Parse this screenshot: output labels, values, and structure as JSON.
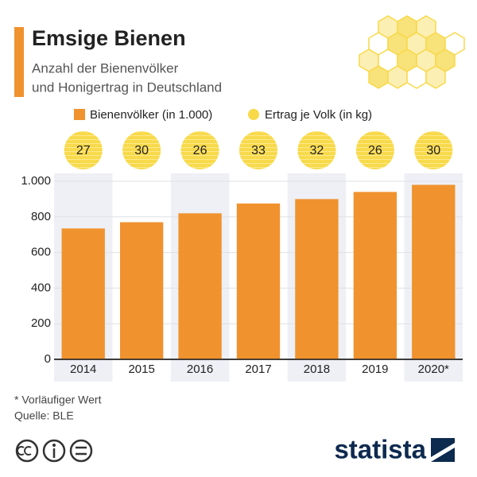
{
  "chart_data": {
    "type": "bar",
    "title": "Emsige Bienen",
    "subtitle": [
      "Anzahl der Bienenvölker",
      "und Honigertrag in Deutschland"
    ],
    "categories": [
      "2014",
      "2015",
      "2016",
      "2017",
      "2018",
      "2019",
      "2020*"
    ],
    "series": [
      {
        "name": "Bienenvölker (in 1.000)",
        "color": "#f0922e",
        "values": [
          735,
          770,
          820,
          875,
          900,
          940,
          980
        ]
      },
      {
        "name": "Ertrag je Volk (in kg)",
        "color": "#f8d948",
        "values": [
          27,
          30,
          26,
          33,
          32,
          26,
          30
        ]
      }
    ],
    "ylim": [
      0,
      1000
    ],
    "yticks": [
      0,
      200,
      400,
      600,
      800,
      {
        "value": 1000,
        "label": "1.000"
      }
    ],
    "grid": true,
    "note": "* Vorläufiger Wert",
    "source": "Quelle: BLE",
    "brand": "statista"
  }
}
